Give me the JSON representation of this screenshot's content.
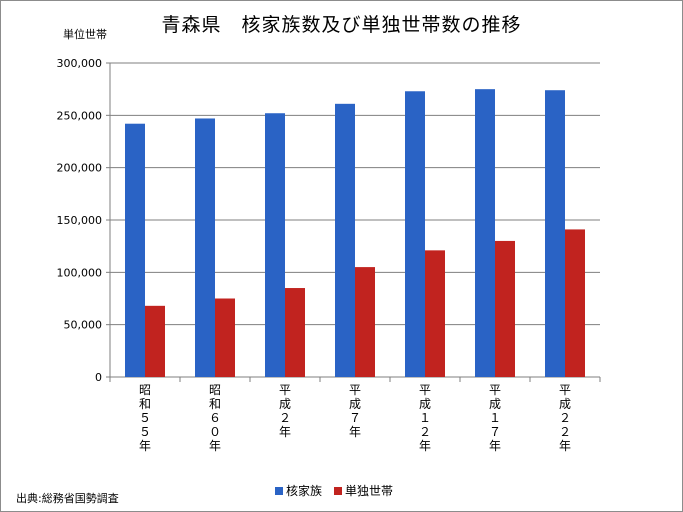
{
  "chart_data": {
    "type": "bar",
    "title": "青森県　核家族数及び単独世帯数の推移",
    "ylabel": "単位世帯",
    "source": "出典:総務省国勢調査",
    "categories": [
      "昭和５５年",
      "昭和６０年",
      "平成２年",
      "平成７年",
      "平成１２年",
      "平成１７年",
      "平成２２年"
    ],
    "series": [
      {
        "name": "核家族",
        "color": "#2a63c5",
        "values": [
          242000,
          247000,
          252000,
          261000,
          273000,
          275000,
          274000
        ]
      },
      {
        "name": "単独世帯",
        "color": "#c1231f",
        "values": [
          68000,
          75000,
          85000,
          105000,
          121000,
          130000,
          141000
        ]
      }
    ],
    "ylim": [
      0,
      300000
    ],
    "yticks": [
      "0",
      "50,000",
      "100,000",
      "150,000",
      "200,000",
      "250,000",
      "300,000"
    ],
    "grid": true,
    "legend": "bottom"
  }
}
